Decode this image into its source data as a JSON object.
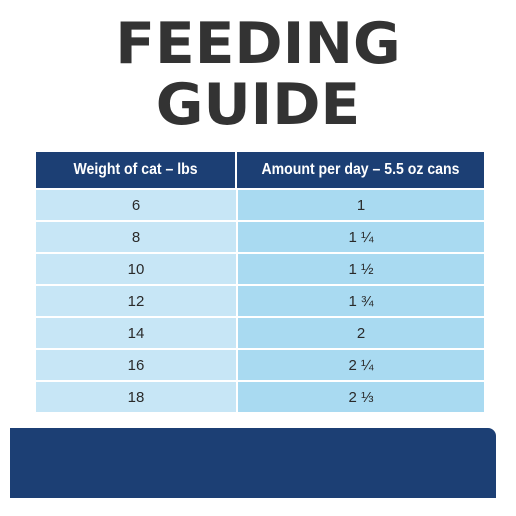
{
  "title_lines": [
    "FEEDING",
    "GUIDE"
  ],
  "table": {
    "headers": [
      "Weight of cat – lbs",
      "Amount per day – 5.5 oz cans"
    ],
    "rows": [
      {
        "weight": "6",
        "amount": "1"
      },
      {
        "weight": "8",
        "amount": "1 ¼"
      },
      {
        "weight": "10",
        "amount": "1 ½"
      },
      {
        "weight": "12",
        "amount": "1 ¾"
      },
      {
        "weight": "14",
        "amount": "2"
      },
      {
        "weight": "16",
        "amount": "2 ¼"
      },
      {
        "weight": "18",
        "amount": "2 ⅓"
      }
    ]
  },
  "colors": {
    "header_bg": "#1c3f74",
    "col1_bg": "#c7e6f6",
    "col2_bg": "#a9daf1",
    "title_text": "#333333"
  }
}
